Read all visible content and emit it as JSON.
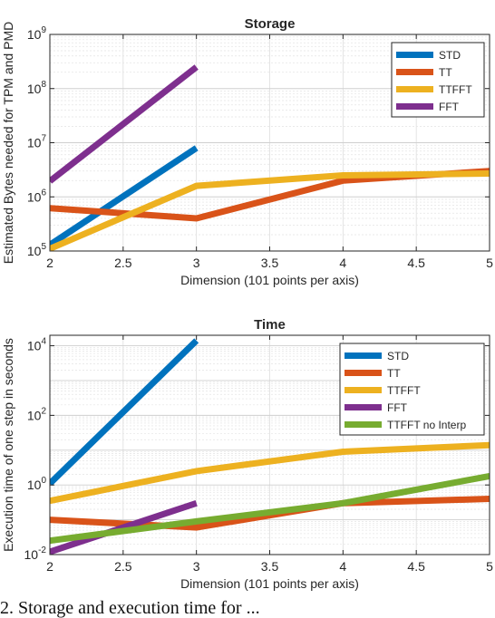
{
  "chart_data": [
    {
      "type": "line",
      "title": "Storage",
      "xlabel": "Dimension (101 points per axis)",
      "ylabel": "Estimated Bytes needed for TPM and PMD",
      "xlim": [
        2,
        5
      ],
      "ylim": [
        100000,
        1000000000
      ],
      "yscale": "log",
      "grid": true,
      "legend_position": "top-right",
      "xticks": [
        "2",
        "2.5",
        "3",
        "3.5",
        "4",
        "4.5",
        "5"
      ],
      "yticks": [
        {
          "base": "10",
          "exp": "5"
        },
        {
          "base": "10",
          "exp": "6"
        },
        {
          "base": "10",
          "exp": "7"
        },
        {
          "base": "10",
          "exp": "8"
        },
        {
          "base": "10",
          "exp": "9"
        }
      ],
      "series": [
        {
          "name": "STD",
          "color": "#0072BD",
          "x": [
            2,
            3
          ],
          "y": [
            130000,
            8000000
          ]
        },
        {
          "name": "TT",
          "color": "#D95319",
          "x": [
            2,
            3,
            4,
            5
          ],
          "y": [
            620000,
            400000,
            2000000,
            3000000
          ]
        },
        {
          "name": "TTFFT",
          "color": "#EDB120",
          "x": [
            2,
            3,
            4,
            5
          ],
          "y": [
            110000,
            1600000,
            2500000,
            2700000
          ]
        },
        {
          "name": "FFT",
          "color": "#7E2F8E",
          "x": [
            2,
            3
          ],
          "y": [
            1950000,
            250000000
          ]
        }
      ]
    },
    {
      "type": "line",
      "title": "Time",
      "xlabel": "Dimension (101 points per axis)",
      "ylabel": "Execution time of one step in seconds",
      "xlim": [
        2,
        5
      ],
      "ylim": [
        0.01,
        20000
      ],
      "yscale": "log",
      "grid": true,
      "legend_position": "top-right",
      "xticks": [
        "2",
        "2.5",
        "3",
        "3.5",
        "4",
        "4.5",
        "5"
      ],
      "yticks": [
        {
          "base": "10",
          "exp": "-2"
        },
        {
          "base": "10",
          "exp": "0"
        },
        {
          "base": "10",
          "exp": "2"
        },
        {
          "base": "10",
          "exp": "4"
        }
      ],
      "series": [
        {
          "name": "STD",
          "color": "#0072BD",
          "x": [
            2,
            3
          ],
          "y": [
            1.1,
            14000
          ]
        },
        {
          "name": "TT",
          "color": "#D95319",
          "x": [
            2,
            3,
            4,
            5
          ],
          "y": [
            0.1,
            0.06,
            0.3,
            0.4
          ]
        },
        {
          "name": "TTFFT",
          "color": "#EDB120",
          "x": [
            2,
            3,
            4,
            5
          ],
          "y": [
            0.35,
            2.5,
            9,
            14
          ]
        },
        {
          "name": "FFT",
          "color": "#7E2F8E",
          "x": [
            2,
            3
          ],
          "y": [
            0.012,
            0.3
          ]
        },
        {
          "name": "TTFFT no Interp",
          "color": "#77AC30",
          "x": [
            2,
            3,
            4,
            5
          ],
          "y": [
            0.025,
            0.09,
            0.3,
            1.8
          ]
        }
      ]
    }
  ],
  "caption_fragment": "2. Storage and execution time for ..."
}
